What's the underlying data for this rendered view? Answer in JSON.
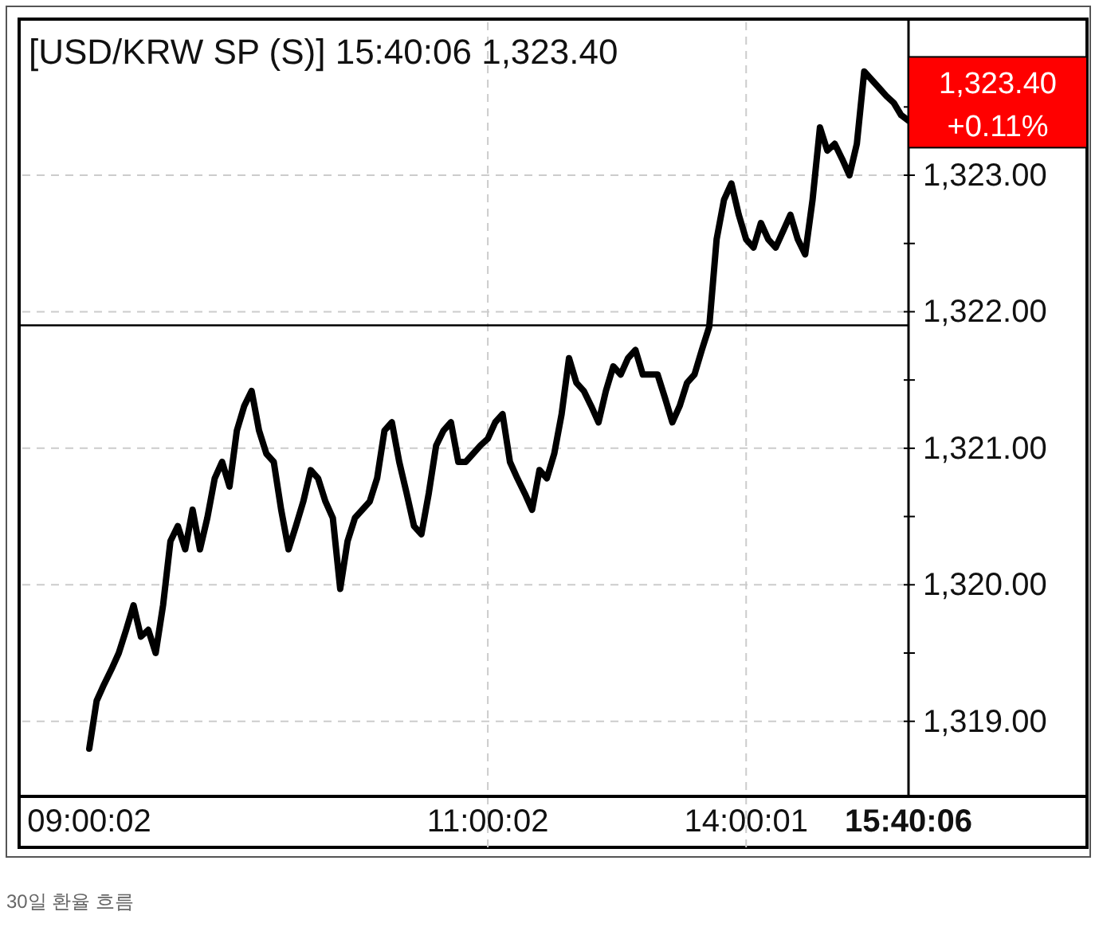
{
  "chart_data": {
    "type": "line",
    "title": "[USD/KRW SP (S)] 15:40:06  1,323.40",
    "categories": [
      "09:00:02",
      null,
      null,
      null,
      null,
      null,
      null,
      null,
      null,
      null,
      null,
      null,
      null,
      null,
      null,
      null,
      null,
      null,
      null,
      null,
      null,
      null,
      null,
      null,
      null,
      null,
      null,
      null,
      null,
      null,
      null,
      null,
      null,
      null,
      null,
      null,
      null,
      null,
      null,
      null,
      null,
      null,
      null,
      null,
      null,
      null,
      null,
      null,
      null,
      null,
      null,
      null,
      null,
      null,
      "11:00:02",
      null,
      null,
      null,
      null,
      null,
      null,
      null,
      null,
      null,
      null,
      null,
      null,
      null,
      null,
      null,
      null,
      null,
      null,
      null,
      null,
      null,
      null,
      null,
      null,
      null,
      null,
      null,
      null,
      null,
      null,
      null,
      null,
      null,
      null,
      "14:00:01",
      null,
      null,
      null,
      null,
      null,
      null,
      null,
      null,
      null,
      null,
      null,
      null,
      null,
      null,
      null,
      null,
      null,
      null,
      null,
      null,
      null,
      "15:40:06"
    ],
    "series": [
      {
        "color": "#000000",
        "values": [
          1318.8,
          1319.15,
          1319.27,
          1319.38,
          1319.5,
          1319.67,
          1319.85,
          1319.62,
          1319.67,
          1319.5,
          1319.85,
          1320.32,
          1320.43,
          1320.26,
          1320.55,
          1320.26,
          1320.49,
          1320.78,
          1320.9,
          1320.72,
          1321.13,
          1321.31,
          1321.42,
          1321.13,
          1320.96,
          1320.9,
          1320.55,
          1320.26,
          1320.43,
          1320.61,
          1320.84,
          1320.78,
          1320.61,
          1320.49,
          1319.97,
          1320.32,
          1320.49,
          1320.55,
          1320.61,
          1320.78,
          1321.13,
          1321.19,
          1320.9,
          1320.67,
          1320.43,
          1320.37,
          1320.67,
          1321.02,
          1321.13,
          1321.19,
          1320.9,
          1320.9,
          1320.96,
          1321.02,
          1321.07,
          1321.19,
          1321.25,
          1320.9,
          1320.78,
          1320.67,
          1320.55,
          1320.84,
          1320.78,
          1320.96,
          1321.25,
          1321.66,
          1321.48,
          1321.42,
          1321.31,
          1321.19,
          1321.42,
          1321.6,
          1321.54,
          1321.66,
          1321.72,
          1321.54,
          1321.54,
          1321.54,
          1321.37,
          1321.19,
          1321.31,
          1321.48,
          1321.54,
          1321.72,
          1321.89,
          1322.53,
          1322.82,
          1322.94,
          1322.71,
          1322.53,
          1322.47,
          1322.65,
          1322.53,
          1322.47,
          1322.59,
          1322.71,
          1322.53,
          1322.42,
          1322.82,
          1323.35,
          1323.18,
          1323.23,
          1323.12,
          1323.0,
          1323.23,
          1323.76,
          1323.7,
          1323.64,
          1323.58,
          1323.53,
          1323.44,
          1323.4
        ]
      }
    ],
    "ylim": [
      1318.45,
      1324.12
    ],
    "yticks": [
      {
        "value": 1319,
        "label": "1,319.00"
      },
      {
        "value": 1319.5,
        "label": null
      },
      {
        "value": 1320,
        "label": "1,320.00"
      },
      {
        "value": 1320.5,
        "label": null
      },
      {
        "value": 1321,
        "label": "1,321.00"
      },
      {
        "value": 1321.5,
        "label": null
      },
      {
        "value": 1322,
        "label": "1,322.00"
      },
      {
        "value": 1322.5,
        "label": null
      },
      {
        "value": 1323,
        "label": "1,323.00"
      },
      {
        "value": 1323.5,
        "label": null
      }
    ],
    "ref_lines": [
      {
        "axis": "y",
        "value": 1321.9,
        "color": "#000000"
      }
    ],
    "grid": true,
    "annotations": [
      {
        "text": "1,323.40",
        "x": "15:40:06",
        "y": 1323.4
      },
      {
        "text": "+0.11%",
        "x": "15:40:06",
        "y": 1323.4
      },
      "30일 환율 흐름"
    ]
  }
}
